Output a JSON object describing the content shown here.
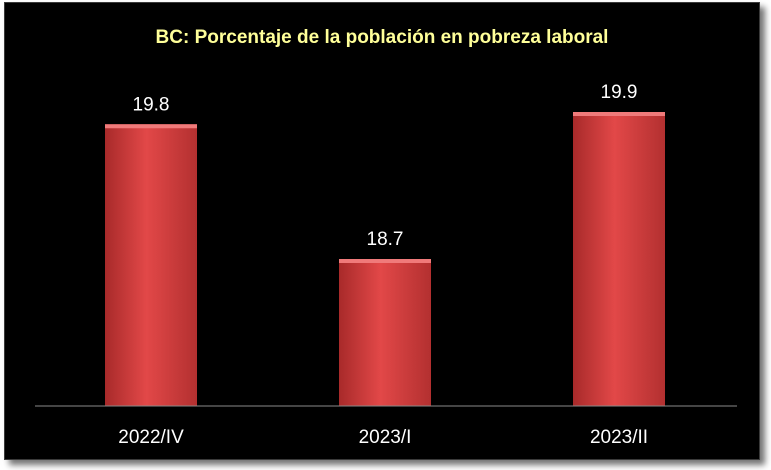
{
  "chart_data": {
    "type": "bar",
    "title": "BC: Porcentaje de la población en pobreza laboral",
    "categories": [
      "2022/IV",
      "2023/I",
      "2023/II"
    ],
    "values": [
      19.8,
      18.7,
      19.9
    ],
    "data_labels": [
      "19.8",
      "18.7",
      "19.9"
    ],
    "ylim": [
      17.5,
      20.3
    ],
    "grid": false,
    "legend": "none",
    "colors": {
      "background": "#000000",
      "bar": "#d63c3c",
      "bar_highlight": "#f07a7a",
      "title": "#ffff99",
      "text": "#ffffff",
      "axis": "#8a8a8a"
    }
  }
}
